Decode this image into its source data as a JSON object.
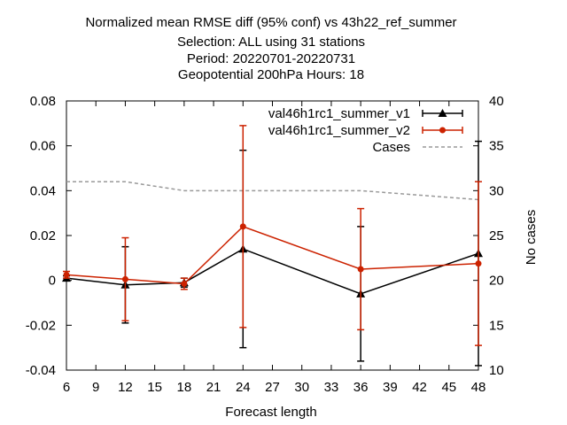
{
  "chart_data": {
    "type": "line",
    "title_lines": [
      "Normalized mean RMSE diff (95% conf) vs 43h22_ref_summer",
      "Selection: ALL using    31 stations",
      "Period: 20220701-20220731",
      "Geopotential 200hPa   Hours:  18"
    ],
    "xlabel": "Forecast length",
    "ylabel": "",
    "y2label": "No cases",
    "xlim": [
      6,
      48
    ],
    "ylim": [
      -0.04,
      0.08
    ],
    "y2lim": [
      10,
      40
    ],
    "xticks": [
      "6",
      "9",
      "12",
      "15",
      "18",
      "21",
      "24",
      "27",
      "30",
      "33",
      "36",
      "39",
      "42",
      "45",
      "48"
    ],
    "yticks": [
      "-0.04",
      "-0.02",
      "0",
      "0.02",
      "0.04",
      "0.06",
      "0.08"
    ],
    "y2ticks": [
      "10",
      "15",
      "20",
      "25",
      "30",
      "35",
      "40"
    ],
    "x": [
      6,
      12,
      18,
      24,
      36,
      48
    ],
    "series": [
      {
        "name": "val46h1rc1_summer_v1",
        "color": "#000000",
        "marker": "triangle",
        "values": [
          0.001,
          -0.002,
          -0.001,
          0.014,
          -0.006,
          0.012
        ],
        "err_low": [
          0.0,
          -0.019,
          -0.003,
          -0.03,
          -0.036,
          -0.038
        ],
        "err_high": [
          0.002,
          0.015,
          0.001,
          0.058,
          0.024,
          0.062
        ]
      },
      {
        "name": "val46h1rc1_summer_v2",
        "color": "#cc2200",
        "marker": "circle",
        "values": [
          0.0025,
          0.0005,
          -0.0015,
          0.024,
          0.005,
          0.0075
        ],
        "err_low": [
          0.001,
          -0.018,
          -0.004,
          -0.021,
          -0.022,
          -0.029
        ],
        "err_high": [
          0.004,
          0.019,
          0.001,
          0.069,
          0.032,
          0.044
        ]
      },
      {
        "name": "Cases",
        "color": "#999999",
        "style": "dashed",
        "axis": "y2",
        "x": [
          6,
          12,
          18,
          24,
          36,
          48
        ],
        "values": [
          31,
          31,
          30,
          30,
          30,
          29
        ]
      }
    ],
    "legend_labels": [
      "val46h1rc1_summer_v1",
      "val46h1rc1_summer_v2",
      "Cases"
    ],
    "legend": "top-right",
    "grid": false
  }
}
